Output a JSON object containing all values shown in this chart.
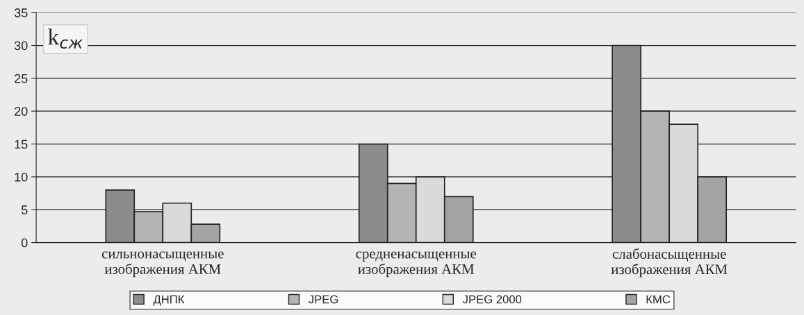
{
  "chart_data": {
    "type": "bar",
    "ylabel": "k$_{сж}$",
    "categories": [
      "сильнонасыщенные\nизображения АКМ",
      "средненасыщенные\nизображения АКМ",
      "слабонасыщенные\nизображения АКМ"
    ],
    "series": [
      {
        "name": "ДНПК",
        "color": "#8c8c8c",
        "values": [
          8,
          15,
          30
        ]
      },
      {
        "name": "JPEG",
        "color": "#b4b4b4",
        "values": [
          4.7,
          9,
          20
        ]
      },
      {
        "name": "JPEG 2000",
        "color": "#dadada",
        "values": [
          6,
          10,
          18
        ]
      },
      {
        "name": "КМС",
        "color": "#a4a4a4",
        "values": [
          2.8,
          7,
          10
        ]
      }
    ],
    "ylim": [
      0,
      35
    ],
    "yticks": [
      0,
      5,
      10,
      15,
      20,
      25,
      30,
      35
    ],
    "grid": "y",
    "legend": "bottom"
  }
}
